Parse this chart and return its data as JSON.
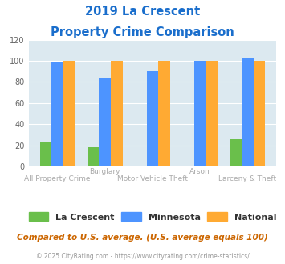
{
  "title_line1": "2019 La Crescent",
  "title_line2": "Property Crime Comparison",
  "categories": [
    "All Property Crime",
    "Burglary",
    "Motor Vehicle Theft",
    "Arson",
    "Larceny & Theft"
  ],
  "top_labels": [
    "",
    "Burglary",
    "",
    "Arson",
    ""
  ],
  "bottom_labels": [
    "All Property Crime",
    "",
    "Motor Vehicle Theft",
    "",
    "Larceny & Theft"
  ],
  "la_crescent": [
    23,
    18,
    0,
    0,
    26
  ],
  "minnesota": [
    99,
    83,
    90,
    100,
    103
  ],
  "national": [
    100,
    100,
    100,
    100,
    100
  ],
  "color_lacrescent": "#6abf4b",
  "color_minnesota": "#4d94ff",
  "color_national": "#ffaa33",
  "color_title": "#1a6ecc",
  "bg_color": "#dce9f0",
  "ylim": [
    0,
    120
  ],
  "yticks": [
    0,
    20,
    40,
    60,
    80,
    100,
    120
  ],
  "footnote1": "Compared to U.S. average. (U.S. average equals 100)",
  "footnote2": "© 2025 CityRating.com - https://www.cityrating.com/crime-statistics/",
  "footnote1_color": "#cc6600",
  "footnote2_color": "#999999",
  "label_color": "#aaaaaa"
}
